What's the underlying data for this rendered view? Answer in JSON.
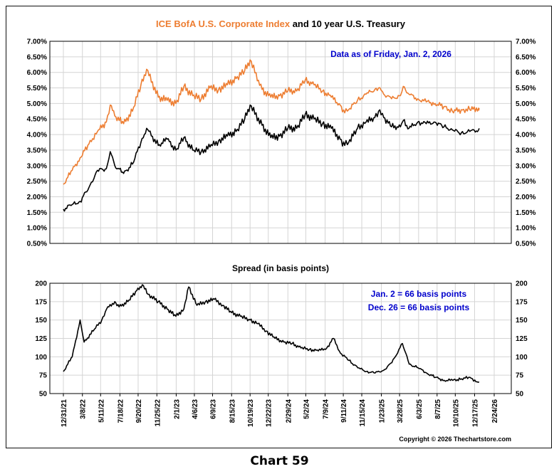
{
  "caption": "Chart 59",
  "copyright": "Copyright © 2026 Thechartstore.com",
  "chart_data": [
    {
      "type": "line",
      "title_parts": [
        {
          "text": "ICE BofA U.S. Corporate Index",
          "color": "#ED7D31"
        },
        {
          "text": " and 10 year U.S. Treasury",
          "color": "#000000"
        }
      ],
      "annotation": "Data as of Friday, Jan. 2, 2026",
      "annotation_color": "#0000CC",
      "ylim": [
        0.5,
        7.0
      ],
      "yticks": [
        "0.50%",
        "1.00%",
        "1.50%",
        "2.00%",
        "2.50%",
        "3.00%",
        "3.50%",
        "4.00%",
        "4.50%",
        "5.00%",
        "5.50%",
        "6.00%",
        "6.50%",
        "7.00%"
      ],
      "grid": true,
      "series": [
        {
          "color": "#ED7D31",
          "x": [
            "2021-12-31",
            "2022-01-31",
            "2022-02-28",
            "2022-03-31",
            "2022-04-30",
            "2022-05-31",
            "2022-06-14",
            "2022-06-30",
            "2022-07-31",
            "2022-08-31",
            "2022-09-30",
            "2022-10-20",
            "2022-11-30",
            "2022-12-31",
            "2023-01-31",
            "2023-02-28",
            "2023-03-31",
            "2023-04-30",
            "2023-05-31",
            "2023-06-30",
            "2023-07-31",
            "2023-08-31",
            "2023-09-30",
            "2023-10-19",
            "2023-11-30",
            "2023-12-31",
            "2024-01-31",
            "2024-02-29",
            "2024-03-31",
            "2024-04-30",
            "2024-05-31",
            "2024-06-30",
            "2024-07-31",
            "2024-08-31",
            "2024-09-16",
            "2024-09-30",
            "2024-10-31",
            "2024-11-30",
            "2024-12-31",
            "2025-01-13",
            "2025-01-31",
            "2025-02-28",
            "2025-03-31",
            "2025-04-10",
            "2025-04-30",
            "2025-05-31",
            "2025-06-30",
            "2025-07-31",
            "2025-08-31",
            "2025-09-30",
            "2025-10-31",
            "2025-11-30",
            "2025-12-31",
            "2026-01-02"
          ],
          "values": [
            2.4,
            2.85,
            3.25,
            3.7,
            4.1,
            4.4,
            4.95,
            4.6,
            4.35,
            4.75,
            5.6,
            6.1,
            5.2,
            5.1,
            5.0,
            5.55,
            5.25,
            5.15,
            5.5,
            5.45,
            5.6,
            5.8,
            6.05,
            6.4,
            5.45,
            5.2,
            5.25,
            5.4,
            5.4,
            5.75,
            5.6,
            5.4,
            5.2,
            4.95,
            4.7,
            4.8,
            5.1,
            5.3,
            5.45,
            5.5,
            5.3,
            5.15,
            5.25,
            5.55,
            5.3,
            5.15,
            5.05,
            5.0,
            4.9,
            4.75,
            4.8,
            4.8,
            4.85,
            4.85
          ]
        },
        {
          "color": "#000000",
          "x": [
            "2021-12-31",
            "2022-01-31",
            "2022-02-28",
            "2022-03-31",
            "2022-04-30",
            "2022-05-31",
            "2022-06-14",
            "2022-06-30",
            "2022-07-31",
            "2022-08-31",
            "2022-09-30",
            "2022-10-20",
            "2022-11-30",
            "2022-12-31",
            "2023-01-31",
            "2023-02-28",
            "2023-03-31",
            "2023-04-30",
            "2023-05-31",
            "2023-06-30",
            "2023-07-31",
            "2023-08-31",
            "2023-09-30",
            "2023-10-19",
            "2023-11-30",
            "2023-12-31",
            "2024-01-31",
            "2024-02-29",
            "2024-03-31",
            "2024-04-30",
            "2024-05-31",
            "2024-06-30",
            "2024-07-31",
            "2024-08-31",
            "2024-09-16",
            "2024-09-30",
            "2024-10-31",
            "2024-11-30",
            "2024-12-31",
            "2025-01-13",
            "2025-01-31",
            "2025-02-28",
            "2025-03-31",
            "2025-04-10",
            "2025-04-30",
            "2025-05-31",
            "2025-06-30",
            "2025-07-31",
            "2025-08-31",
            "2025-09-30",
            "2025-10-31",
            "2025-11-30",
            "2025-12-31",
            "2026-01-02"
          ],
          "values": [
            1.6,
            1.75,
            1.85,
            2.3,
            2.85,
            2.9,
            3.45,
            3.0,
            2.75,
            3.05,
            3.75,
            4.2,
            3.65,
            3.85,
            3.5,
            3.9,
            3.5,
            3.45,
            3.6,
            3.8,
            3.95,
            4.1,
            4.5,
            4.95,
            4.3,
            3.9,
            3.95,
            4.2,
            4.2,
            4.65,
            4.5,
            4.35,
            4.2,
            3.85,
            3.65,
            3.75,
            4.2,
            4.4,
            4.55,
            4.75,
            4.55,
            4.25,
            4.25,
            4.45,
            4.2,
            4.4,
            4.35,
            4.4,
            4.25,
            4.15,
            4.05,
            4.1,
            4.15,
            4.2
          ]
        }
      ]
    },
    {
      "type": "line",
      "title": "Spread (in basis points)",
      "annotations": [
        "Jan. 2 = 66 basis points",
        "Dec. 26 = 66 basis points"
      ],
      "annotation_color": "#0000CC",
      "ylim": [
        50,
        200
      ],
      "yticks": [
        50,
        75,
        100,
        125,
        150,
        175,
        200
      ],
      "xticks": [
        "12/31/21",
        "3/8/22",
        "5/11/22",
        "7/18/22",
        "9/20/22",
        "11/25/22",
        "2/1/23",
        "4/6/23",
        "6/9/23",
        "8/15/23",
        "10/19/23",
        "12/22/23",
        "2/29/24",
        "5/2/24",
        "7/9/24",
        "9/11/24",
        "11/15/24",
        "1/23/25",
        "3/28/25",
        "6/3/25",
        "8/7/25",
        "10/10/25",
        "12/17/25",
        "2/24/26"
      ],
      "grid": true,
      "series": [
        {
          "color": "#000000",
          "x": [
            "2021-12-31",
            "2022-01-31",
            "2022-02-28",
            "2022-03-14",
            "2022-04-15",
            "2022-05-15",
            "2022-06-01",
            "2022-06-30",
            "2022-07-15",
            "2022-08-15",
            "2022-09-15",
            "2022-10-05",
            "2022-10-25",
            "2022-11-30",
            "2022-12-31",
            "2023-01-31",
            "2023-02-28",
            "2023-03-17",
            "2023-04-15",
            "2023-05-15",
            "2023-06-15",
            "2023-07-15",
            "2023-08-15",
            "2023-09-15",
            "2023-10-19",
            "2023-11-15",
            "2023-12-15",
            "2024-01-15",
            "2024-02-15",
            "2024-03-15",
            "2024-04-15",
            "2024-05-15",
            "2024-06-15",
            "2024-07-15",
            "2024-08-07",
            "2024-09-01",
            "2024-10-01",
            "2024-11-01",
            "2024-12-01",
            "2025-01-01",
            "2025-02-01",
            "2025-03-01",
            "2025-04-07",
            "2025-05-01",
            "2025-06-01",
            "2025-07-01",
            "2025-08-01",
            "2025-09-01",
            "2025-10-01",
            "2025-11-01",
            "2025-12-01",
            "2025-12-26",
            "2026-01-02"
          ],
          "values": [
            80,
            100,
            150,
            120,
            135,
            150,
            165,
            175,
            168,
            175,
            190,
            198,
            185,
            175,
            165,
            155,
            165,
            195,
            170,
            175,
            178,
            170,
            160,
            155,
            150,
            145,
            135,
            125,
            120,
            118,
            112,
            110,
            108,
            112,
            125,
            105,
            95,
            85,
            80,
            78,
            82,
            92,
            118,
            90,
            85,
            78,
            72,
            68,
            68,
            70,
            72,
            66,
            66
          ]
        }
      ]
    }
  ]
}
